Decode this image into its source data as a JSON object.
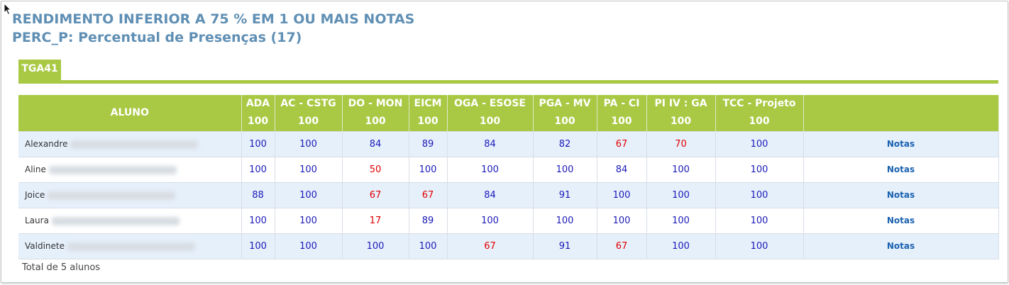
{
  "report": {
    "title_line1": "RENDIMENTO INFERIOR A 75 % EM 1 OU MAIS NOTAS",
    "title_line2": "PERC_P: Percentual de Presenças (17)"
  },
  "tab": {
    "label": "TGA41"
  },
  "table": {
    "student_header": "ALUNO",
    "columns": [
      {
        "name": "ADA",
        "max": "100"
      },
      {
        "name": "AC - CSTG",
        "max": "100"
      },
      {
        "name": "DO - MON",
        "max": "100"
      },
      {
        "name": "EICM",
        "max": "100"
      },
      {
        "name": "OGA - ESOSE",
        "max": "100"
      },
      {
        "name": "PGA - MV",
        "max": "100"
      },
      {
        "name": "PA - CI",
        "max": "100"
      },
      {
        "name": "PI IV : GA",
        "max": "100"
      },
      {
        "name": "TCC - Projeto",
        "max": "100"
      }
    ],
    "link_label": "Notas",
    "rows": [
      {
        "name": "Alexandre",
        "scores": [
          "100",
          "100",
          "84",
          "89",
          "84",
          "82",
          "67",
          "70",
          "100"
        ],
        "below": [
          false,
          false,
          false,
          false,
          false,
          false,
          true,
          true,
          false
        ]
      },
      {
        "name": "Aline",
        "scores": [
          "100",
          "100",
          "50",
          "100",
          "100",
          "100",
          "84",
          "100",
          "100"
        ],
        "below": [
          false,
          false,
          true,
          false,
          false,
          false,
          false,
          false,
          false
        ]
      },
      {
        "name": "Joice",
        "scores": [
          "88",
          "100",
          "67",
          "67",
          "84",
          "91",
          "100",
          "100",
          "100"
        ],
        "below": [
          false,
          false,
          true,
          true,
          false,
          false,
          false,
          false,
          false
        ]
      },
      {
        "name": "Laura",
        "scores": [
          "100",
          "100",
          "17",
          "89",
          "100",
          "100",
          "100",
          "100",
          "100"
        ],
        "below": [
          false,
          false,
          true,
          false,
          false,
          false,
          false,
          false,
          false
        ]
      },
      {
        "name": "Valdinete",
        "scores": [
          "100",
          "100",
          "100",
          "100",
          "67",
          "91",
          "67",
          "100",
          "100"
        ],
        "below": [
          false,
          false,
          false,
          false,
          true,
          false,
          true,
          false,
          false
        ]
      }
    ]
  },
  "footer": {
    "total": "Total de 5 alunos"
  },
  "colors": {
    "accent": "#a9c944",
    "title": "#5f8fb4",
    "ok_score": "#1a1ab8",
    "low_score": "#e00000",
    "link": "#1a62b0"
  }
}
